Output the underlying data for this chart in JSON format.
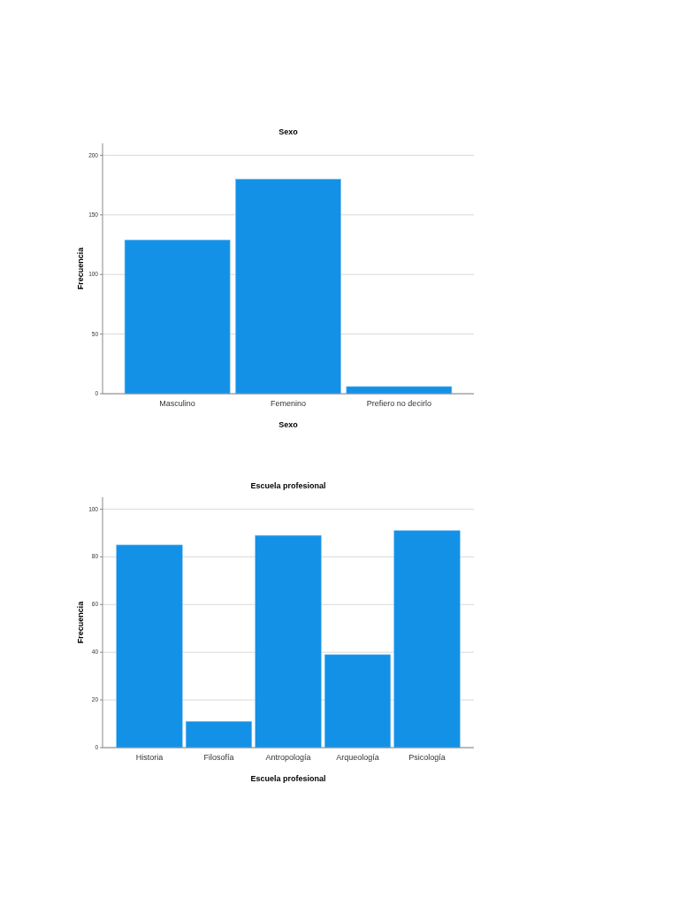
{
  "chart_data": [
    {
      "type": "bar",
      "title": "Sexo",
      "xlabel": "Sexo",
      "ylabel": "Frecuencia",
      "categories": [
        "Masculino",
        "Femenino",
        "Prefiero no decirlo"
      ],
      "values": [
        129,
        180,
        6
      ],
      "color": "#1391e6",
      "ylim": [
        0,
        210
      ],
      "yticks": [
        0,
        50,
        100,
        150,
        200
      ],
      "grid": "y"
    },
    {
      "type": "bar",
      "title": "Escuela profesional",
      "xlabel": "Escuela profesional",
      "ylabel": "Frecuencia",
      "categories": [
        "Historia",
        "Filosofía",
        "Antropología",
        "Arqueología",
        "Psicología"
      ],
      "values": [
        85,
        11,
        89,
        39,
        91
      ],
      "color": "#1391e6",
      "ylim": [
        0,
        105
      ],
      "yticks": [
        0,
        20,
        40,
        60,
        80,
        100
      ],
      "grid": "y"
    }
  ]
}
